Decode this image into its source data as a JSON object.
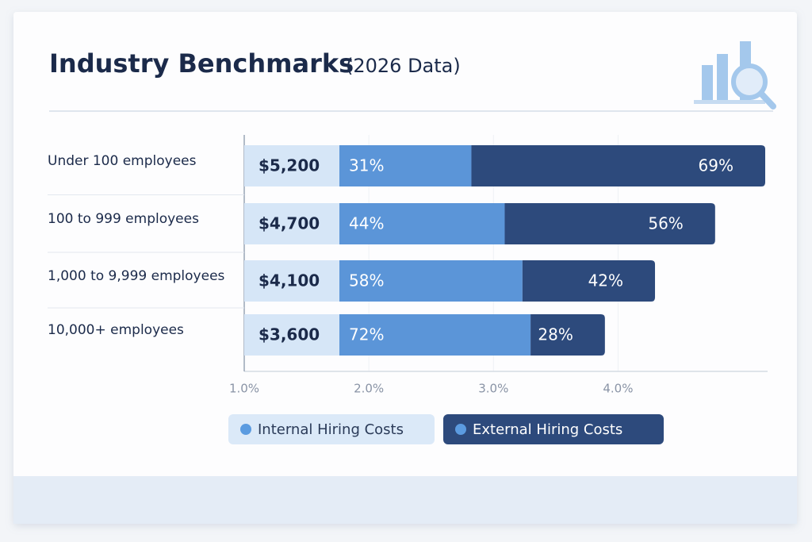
{
  "chart_data": {
    "type": "bar",
    "title": "Industry Benchmarks",
    "subtitle": "(2026 Data)",
    "categories": [
      "Under 100 employees",
      "100 to 999 employees",
      "1,000 to 9,999 employees",
      "10,000+ employees"
    ],
    "cost": {
      "values": [
        5200,
        4700,
        4100,
        3600
      ],
      "value_labels": [
        "$5,200",
        "$4,700",
        "$4,100",
        "$3,600"
      ],
      "color": "#d6e6f7"
    },
    "series": [
      {
        "name": "Internal Hiring Costs",
        "color": "#5b95d8",
        "values": [
          31,
          44,
          58,
          72
        ],
        "value_labels": [
          "31%",
          "44%",
          "58%",
          "72%"
        ]
      },
      {
        "name": "External Hiring Costs",
        "color": "#2d4a7c",
        "values": [
          69,
          56,
          42,
          28
        ],
        "value_labels": [
          "69%",
          "56%",
          "42%",
          "28%"
        ]
      }
    ],
    "xlim": [
      1.0,
      5.2
    ],
    "xticks": [
      {
        "value": 1.0,
        "label": "1.0%"
      },
      {
        "value": 2.0,
        "label": "2.0%"
      },
      {
        "value": 3.0,
        "label": "3.0%"
      },
      {
        "value": 4.0,
        "label": "4.0%"
      }
    ],
    "grid": true
  }
}
